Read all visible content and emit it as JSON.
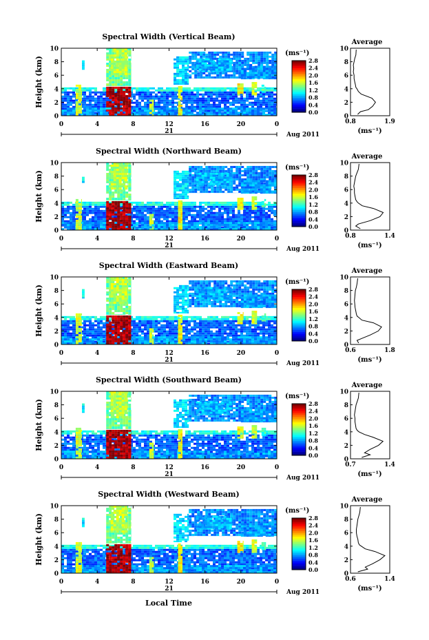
{
  "shared": {
    "y_label": "Height (km)",
    "x_ticks": [
      "0",
      "4",
      "8",
      "12",
      "16",
      "20",
      "0"
    ],
    "day_label": "21",
    "date_label": "Aug 2011",
    "unit_label": "(ms⁻¹)",
    "colorbar_ticks": [
      "0.0",
      "0.4",
      "0.8",
      "1.2",
      "1.6",
      "2.0",
      "2.4",
      "2.8"
    ],
    "y_ticks": [
      "0",
      "2",
      "4",
      "6",
      "8",
      "10"
    ],
    "average_title": "Average",
    "average_xlabel": "(ms⁻¹)",
    "x_label_bottom": "Local Time"
  },
  "chart_data": [
    {
      "type": "heatmap",
      "title": "Spectral Width (Vertical Beam)",
      "xlim": [
        0,
        24
      ],
      "ylim": [
        0,
        10
      ],
      "colorbar_range": [
        0.0,
        2.8
      ],
      "profile": {
        "type": "line",
        "title": "Average",
        "xlim": [
          0.8,
          1.9
        ],
        "x_ticks": [
          "0.8",
          "1.9"
        ],
        "x": [
          1.0,
          1.08,
          1.3,
          1.42,
          1.5,
          1.4,
          1.1,
          1.02,
          0.98,
          0.95,
          0.94,
          0.92,
          0.9,
          0.9,
          0.88,
          0.89,
          0.88,
          0.9,
          0.92,
          0.95,
          0.96
        ],
        "y": [
          0.2,
          0.6,
          0.9,
          1.4,
          2.0,
          2.6,
          3.2,
          3.6,
          4.0,
          4.2,
          4.5,
          5.0,
          5.5,
          6.0,
          6.5,
          7.0,
          7.5,
          8.0,
          8.5,
          9.0,
          9.8
        ]
      }
    },
    {
      "type": "heatmap",
      "title": "Spectral Width (Northward Beam)",
      "xlim": [
        0,
        24
      ],
      "ylim": [
        0,
        10
      ],
      "colorbar_range": [
        0.0,
        2.8
      ],
      "profile": {
        "type": "line",
        "title": "Average",
        "xlim": [
          0.8,
          1.4
        ],
        "x_ticks": [
          "0.8",
          "1.4"
        ],
        "x": [
          0.95,
          0.88,
          0.92,
          1.1,
          1.25,
          1.3,
          1.15,
          0.98,
          0.92,
          0.9,
          0.88,
          0.87,
          0.86,
          0.86,
          0.85,
          0.86,
          0.87,
          0.88,
          0.9,
          0.92,
          0.93
        ],
        "y": [
          0.2,
          0.6,
          0.9,
          1.4,
          2.0,
          2.6,
          3.2,
          3.6,
          4.0,
          4.2,
          4.5,
          5.0,
          5.5,
          6.0,
          6.5,
          7.0,
          7.5,
          8.0,
          8.5,
          9.0,
          9.8
        ]
      }
    },
    {
      "type": "heatmap",
      "title": "Spectral Width (Eastward Beam)",
      "xlim": [
        0,
        24
      ],
      "ylim": [
        0,
        10
      ],
      "colorbar_range": [
        0.0,
        2.8
      ],
      "profile": {
        "type": "line",
        "title": "Average",
        "xlim": [
          0.6,
          1.8
        ],
        "x_ticks": [
          "0.6",
          "1.8"
        ],
        "x": [
          0.85,
          0.8,
          0.95,
          1.2,
          1.45,
          1.55,
          1.3,
          0.95,
          0.85,
          0.8,
          0.78,
          0.76,
          0.74,
          0.73,
          0.72,
          0.73,
          0.74,
          0.75,
          0.78,
          0.8,
          0.82
        ],
        "y": [
          0.2,
          0.6,
          0.9,
          1.4,
          2.0,
          2.6,
          3.2,
          3.6,
          4.0,
          4.2,
          4.5,
          5.0,
          5.5,
          6.0,
          6.5,
          7.0,
          7.5,
          8.0,
          8.5,
          9.0,
          9.8
        ]
      }
    },
    {
      "type": "heatmap",
      "title": "Spectral Width (Southward Beam)",
      "xlim": [
        0,
        24
      ],
      "ylim": [
        0,
        10
      ],
      "colorbar_range": [
        0.0,
        2.8
      ],
      "profile": {
        "type": "line",
        "title": "Average",
        "xlim": [
          0.7,
          1.4
        ],
        "x_ticks": [
          "0.7",
          "1.4"
        ],
        "x": [
          0.9,
          1.05,
          0.95,
          1.05,
          1.2,
          1.28,
          1.1,
          0.95,
          0.85,
          0.82,
          0.8,
          0.79,
          0.78,
          0.78,
          0.77,
          0.78,
          0.79,
          0.8,
          0.82,
          0.84,
          0.85
        ],
        "y": [
          0.2,
          0.6,
          0.9,
          1.4,
          2.0,
          2.6,
          3.2,
          3.6,
          4.0,
          4.2,
          4.5,
          5.0,
          5.5,
          6.0,
          6.5,
          7.0,
          7.5,
          8.0,
          8.5,
          9.0,
          9.8
        ]
      }
    },
    {
      "type": "heatmap",
      "title": "Spectral Width (Westward Beam)",
      "xlim": [
        0,
        24
      ],
      "ylim": [
        0,
        10
      ],
      "colorbar_range": [
        0.0,
        2.8
      ],
      "profile": {
        "type": "line",
        "title": "Average",
        "xlim": [
          0.6,
          1.4
        ],
        "x_ticks": [
          "0.6",
          "1.4"
        ],
        "x": [
          0.75,
          0.95,
          0.9,
          1.05,
          1.2,
          1.3,
          1.1,
          0.9,
          0.82,
          0.78,
          0.76,
          0.75,
          0.73,
          0.72,
          0.72,
          0.73,
          0.74,
          0.75,
          0.77,
          0.79,
          0.8
        ],
        "y": [
          0.2,
          0.6,
          0.9,
          1.4,
          2.0,
          2.6,
          3.2,
          3.6,
          4.0,
          4.2,
          4.5,
          5.0,
          5.5,
          6.0,
          6.5,
          7.0,
          7.5,
          8.0,
          8.5,
          9.0,
          9.8
        ]
      }
    }
  ]
}
